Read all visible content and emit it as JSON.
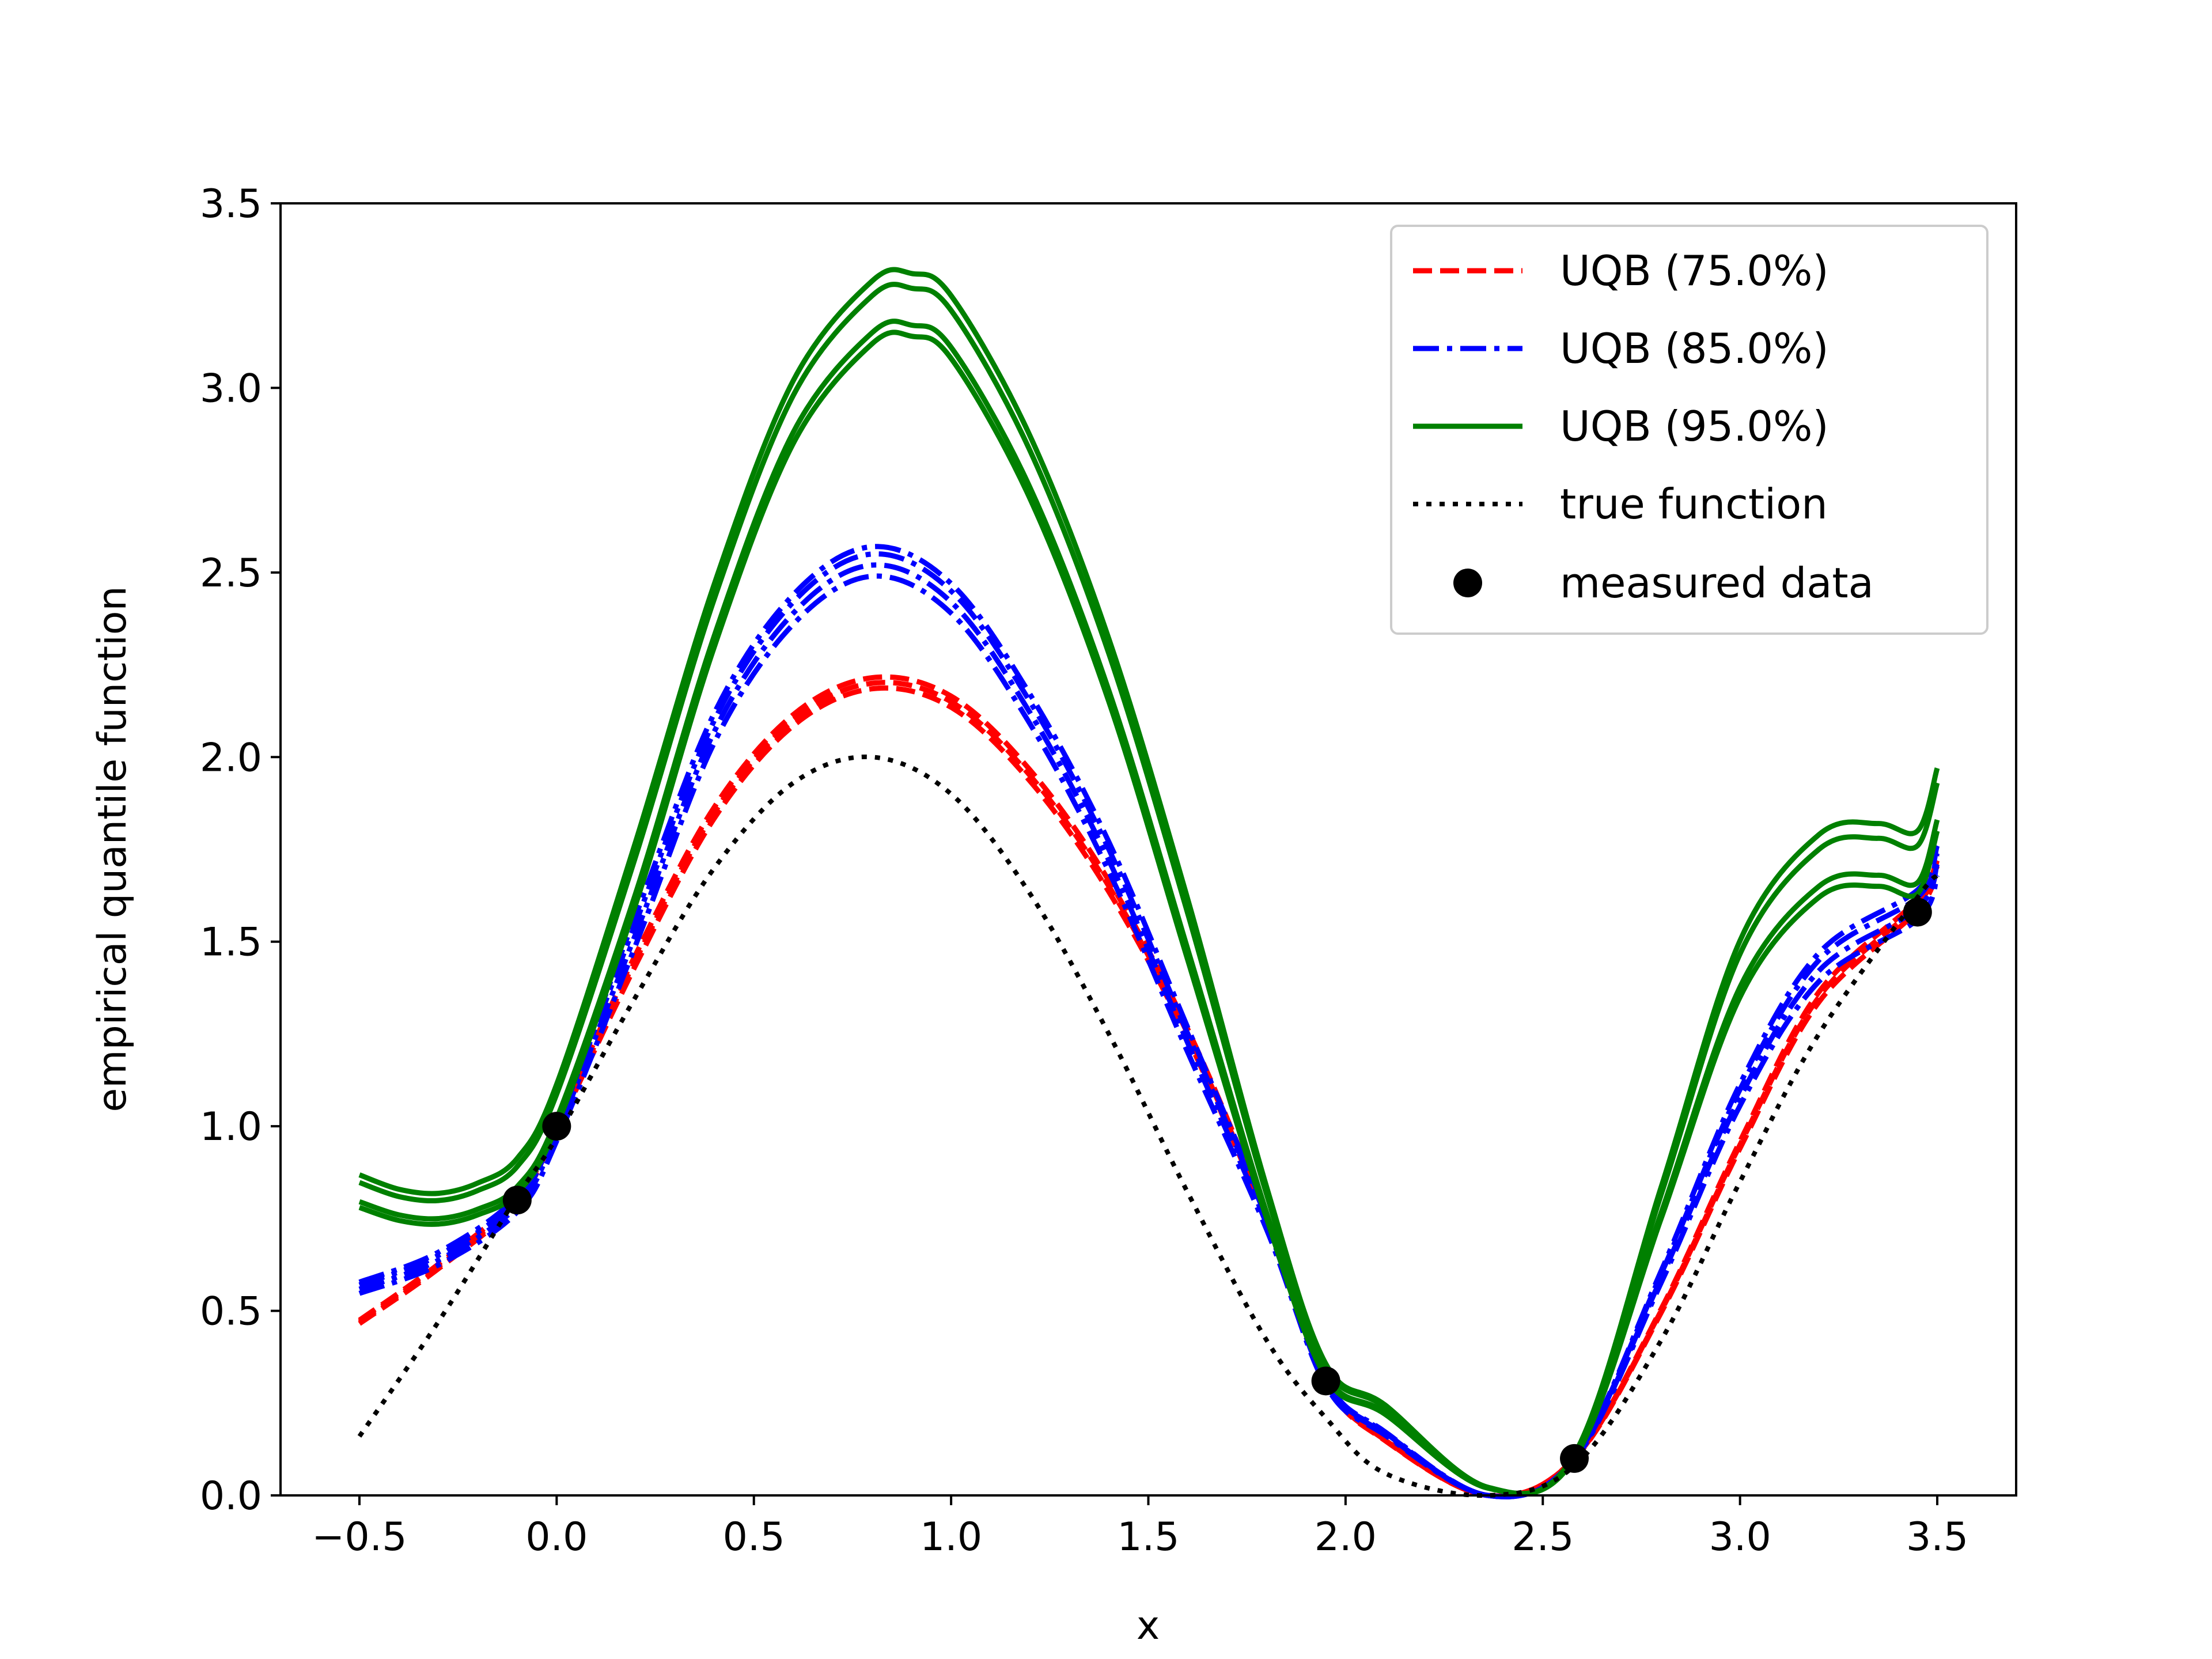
{
  "chart_data": {
    "type": "line",
    "title": "",
    "xlabel": "x",
    "ylabel": "empirical quantile function",
    "xlim": [
      -0.7,
      3.7
    ],
    "ylim": [
      0.0,
      3.5
    ],
    "grid": false,
    "x_ticks": [
      -0.5,
      0.0,
      0.5,
      1.0,
      1.5,
      2.0,
      2.5,
      3.0,
      3.5
    ],
    "x_tick_labels": [
      "−0.5",
      "0.0",
      "0.5",
      "1.0",
      "1.5",
      "2.0",
      "2.5",
      "3.0",
      "3.5"
    ],
    "y_ticks": [
      0.0,
      0.5,
      1.0,
      1.5,
      2.0,
      2.5,
      3.0,
      3.5
    ],
    "y_tick_labels": [
      "0.0",
      "0.5",
      "1.0",
      "1.5",
      "2.0",
      "2.5",
      "3.0",
      "3.5"
    ],
    "legend_position": "top-right",
    "legend": [
      {
        "label": "UQB (75.0%)",
        "color": "#ff0000",
        "style": "dashed"
      },
      {
        "label": "UQB (85.0%)",
        "color": "#0000ff",
        "style": "dashdot"
      },
      {
        "label": "UQB (95.0%)",
        "color": "#008000",
        "style": "solid"
      },
      {
        "label": "true function",
        "color": "#000000",
        "style": "dotted"
      },
      {
        "label": "measured data",
        "color": "#000000",
        "style": "marker"
      }
    ],
    "series": [
      {
        "name": "UQB (75.0%)",
        "color": "#ff0000",
        "style": "dashed",
        "x": [
          -0.5,
          -0.3,
          -0.1,
          0.0,
          0.2,
          0.4,
          0.6,
          0.8,
          1.0,
          1.2,
          1.4,
          1.6,
          1.8,
          1.95,
          2.1,
          2.36,
          2.58,
          2.8,
          3.0,
          3.2,
          3.45,
          3.5
        ],
        "values": [
          0.47,
          0.62,
          0.8,
          1.0,
          1.45,
          1.85,
          2.1,
          2.2,
          2.15,
          1.95,
          1.65,
          1.25,
          0.75,
          0.31,
          0.15,
          0.0,
          0.1,
          0.5,
          0.95,
          1.35,
          1.6,
          1.72
        ],
        "variants": [
          0,
          0.015,
          -0.015
        ]
      },
      {
        "name": "UQB (85.0%)",
        "color": "#0000ff",
        "style": "dashdot",
        "x": [
          -0.5,
          -0.3,
          -0.1,
          0.0,
          0.2,
          0.4,
          0.6,
          0.8,
          1.0,
          1.2,
          1.4,
          1.6,
          1.8,
          1.95,
          2.1,
          2.36,
          2.58,
          2.8,
          3.0,
          3.2,
          3.45,
          3.5
        ],
        "values": [
          0.57,
          0.65,
          0.8,
          1.0,
          1.55,
          2.1,
          2.42,
          2.55,
          2.45,
          2.15,
          1.75,
          1.25,
          0.75,
          0.31,
          0.17,
          0.0,
          0.1,
          0.6,
          1.1,
          1.45,
          1.62,
          1.74
        ],
        "variants": [
          0,
          0.02,
          -0.03,
          -0.06
        ]
      },
      {
        "name": "UQB (95.0%)",
        "color": "#008000",
        "style": "solid",
        "x": [
          -0.5,
          -0.4,
          -0.3,
          -0.2,
          -0.1,
          0.0,
          0.2,
          0.4,
          0.6,
          0.8,
          0.9,
          1.0,
          1.2,
          1.4,
          1.6,
          1.8,
          1.95,
          2.1,
          2.36,
          2.58,
          2.8,
          3.0,
          3.2,
          3.35,
          3.45,
          3.5
        ],
        "values": [
          0.78,
          0.745,
          0.735,
          0.76,
          0.82,
          1.0,
          1.6,
          2.3,
          2.85,
          3.12,
          3.14,
          3.08,
          2.7,
          2.15,
          1.45,
          0.75,
          0.32,
          0.22,
          0.02,
          0.1,
          0.75,
          1.35,
          1.62,
          1.65,
          1.63,
          1.8
        ],
        "variants": [
          0,
          0.03,
          0.13,
          0.17
        ]
      },
      {
        "name": "true function",
        "color": "#000000",
        "style": "dotted",
        "x": [
          -0.5,
          -0.3,
          -0.1,
          0.0,
          0.2,
          0.4,
          0.6,
          0.8,
          1.0,
          1.2,
          1.4,
          1.6,
          1.8,
          1.95,
          2.1,
          2.36,
          2.58,
          2.8,
          3.0,
          3.2,
          3.45,
          3.5
        ],
        "values": [
          0.16,
          0.47,
          0.81,
          0.97,
          1.35,
          1.7,
          1.93,
          2.0,
          1.9,
          1.63,
          1.25,
          0.82,
          0.42,
          0.21,
          0.06,
          0.0,
          0.08,
          0.42,
          0.85,
          1.25,
          1.62,
          1.68
        ]
      }
    ],
    "measured_data": {
      "x": [
        -0.1,
        0.0,
        1.95,
        2.58,
        3.45
      ],
      "values": [
        0.8,
        1.0,
        0.31,
        0.1,
        1.58
      ]
    }
  }
}
